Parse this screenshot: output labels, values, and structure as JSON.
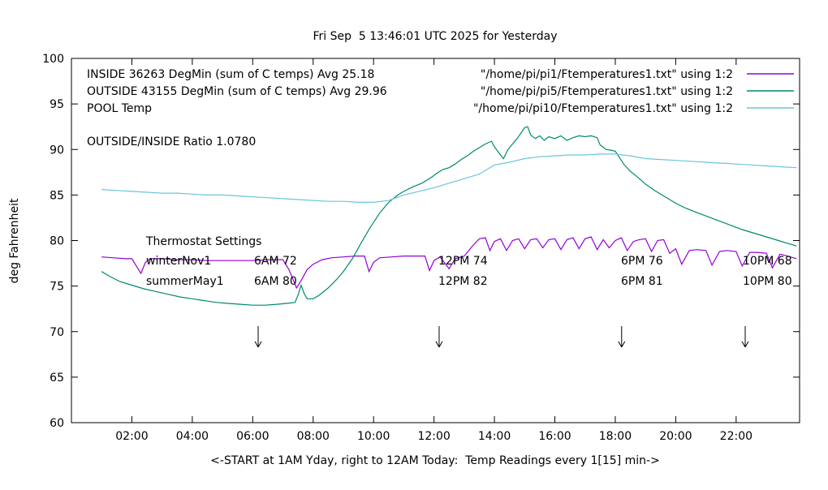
{
  "chart_data": {
    "type": "line",
    "title": "Fri Sep  5 13:46:01 UTC 2025 for Yesterday",
    "xlabel": "<-START at 1AM Yday, right to 12AM Today:  Temp Readings every 1[15] min->",
    "ylabel": "deg Fahrenheit",
    "xlim": [
      0,
      24.1
    ],
    "ylim": [
      60,
      100
    ],
    "grid": false,
    "legend_position": "top-left-inside",
    "xticks": [
      {
        "v": 2,
        "label": "02:00"
      },
      {
        "v": 4,
        "label": "04:00"
      },
      {
        "v": 6,
        "label": "06:00"
      },
      {
        "v": 8,
        "label": "08:00"
      },
      {
        "v": 10,
        "label": "10:00"
      },
      {
        "v": 12,
        "label": "12:00"
      },
      {
        "v": 14,
        "label": "14:00"
      },
      {
        "v": 16,
        "label": "16:00"
      },
      {
        "v": 18,
        "label": "18:00"
      },
      {
        "v": 20,
        "label": "20:00"
      },
      {
        "v": 22,
        "label": "22:00"
      }
    ],
    "yticks": [
      60,
      65,
      70,
      75,
      80,
      85,
      90,
      95,
      100
    ],
    "legend": [
      {
        "label": "INSIDE 36263 DegMin (sum of C temps) Avg 25.18",
        "file": "\"/home/pi/pi1/Ftemperatures1.txt\" using 1:2",
        "color": "#9400d3"
      },
      {
        "label": "OUTSIDE 43155 DegMin (sum of C temps) Avg 29.96",
        "file": "\"/home/pi/pi5/Ftemperatures1.txt\" using 1:2",
        "color": "#00896c"
      },
      {
        "label": "POOL Temp",
        "file": "\"/home/pi/pi10/Ftemperatures1.txt\" using 1:2",
        "color": "#6cc5d8"
      }
    ],
    "series": [
      {
        "name": "INSIDE",
        "color": "#9400d3",
        "points": [
          [
            1.0,
            78.2
          ],
          [
            1.4,
            78.1
          ],
          [
            1.8,
            78.0
          ],
          [
            2.0,
            78.0
          ],
          [
            2.15,
            77.2
          ],
          [
            2.3,
            76.4
          ],
          [
            2.45,
            77.6
          ],
          [
            2.6,
            78.0
          ],
          [
            3.0,
            78.0
          ],
          [
            3.5,
            77.9
          ],
          [
            4.0,
            77.9
          ],
          [
            4.5,
            77.8
          ],
          [
            5.0,
            77.8
          ],
          [
            5.5,
            77.8
          ],
          [
            6.0,
            77.8
          ],
          [
            6.5,
            77.9
          ],
          [
            7.0,
            77.9
          ],
          [
            7.2,
            76.8
          ],
          [
            7.45,
            74.8
          ],
          [
            7.6,
            75.6
          ],
          [
            7.8,
            76.8
          ],
          [
            8.0,
            77.4
          ],
          [
            8.3,
            77.9
          ],
          [
            8.6,
            78.1
          ],
          [
            9.0,
            78.2
          ],
          [
            9.4,
            78.3
          ],
          [
            9.7,
            78.3
          ],
          [
            9.85,
            76.6
          ],
          [
            10.0,
            77.6
          ],
          [
            10.2,
            78.1
          ],
          [
            10.6,
            78.2
          ],
          [
            11.0,
            78.3
          ],
          [
            11.4,
            78.3
          ],
          [
            11.7,
            78.3
          ],
          [
            11.85,
            76.7
          ],
          [
            12.0,
            77.8
          ],
          [
            12.2,
            78.2
          ],
          [
            12.5,
            76.9
          ],
          [
            12.7,
            78.0
          ],
          [
            13.0,
            78.3
          ],
          [
            13.3,
            79.5
          ],
          [
            13.5,
            80.2
          ],
          [
            13.7,
            80.3
          ],
          [
            13.85,
            78.9
          ],
          [
            14.0,
            79.9
          ],
          [
            14.2,
            80.2
          ],
          [
            14.4,
            78.9
          ],
          [
            14.6,
            80.0
          ],
          [
            14.8,
            80.2
          ],
          [
            15.0,
            79.1
          ],
          [
            15.2,
            80.1
          ],
          [
            15.4,
            80.2
          ],
          [
            15.6,
            79.2
          ],
          [
            15.8,
            80.1
          ],
          [
            16.0,
            80.2
          ],
          [
            16.2,
            79.0
          ],
          [
            16.4,
            80.1
          ],
          [
            16.6,
            80.3
          ],
          [
            16.8,
            79.1
          ],
          [
            17.0,
            80.2
          ],
          [
            17.2,
            80.4
          ],
          [
            17.4,
            79.0
          ],
          [
            17.6,
            80.1
          ],
          [
            17.8,
            79.2
          ],
          [
            18.0,
            80.0
          ],
          [
            18.2,
            80.3
          ],
          [
            18.4,
            78.9
          ],
          [
            18.6,
            79.9
          ],
          [
            18.8,
            80.1
          ],
          [
            19.0,
            80.2
          ],
          [
            19.2,
            78.8
          ],
          [
            19.4,
            80.0
          ],
          [
            19.6,
            80.1
          ],
          [
            19.8,
            78.6
          ],
          [
            20.0,
            79.1
          ],
          [
            20.2,
            77.4
          ],
          [
            20.45,
            78.9
          ],
          [
            20.7,
            79.0
          ],
          [
            21.0,
            78.9
          ],
          [
            21.2,
            77.3
          ],
          [
            21.45,
            78.8
          ],
          [
            21.7,
            78.9
          ],
          [
            22.0,
            78.8
          ],
          [
            22.2,
            77.2
          ],
          [
            22.45,
            78.7
          ],
          [
            22.7,
            78.7
          ],
          [
            23.0,
            78.6
          ],
          [
            23.2,
            77.0
          ],
          [
            23.45,
            78.5
          ],
          [
            23.7,
            78.3
          ],
          [
            24.0,
            78.0
          ]
        ]
      },
      {
        "name": "OUTSIDE",
        "color": "#00896c",
        "points": [
          [
            1.0,
            76.6
          ],
          [
            1.3,
            76.0
          ],
          [
            1.6,
            75.5
          ],
          [
            2.0,
            75.1
          ],
          [
            2.4,
            74.7
          ],
          [
            2.8,
            74.4
          ],
          [
            3.2,
            74.1
          ],
          [
            3.6,
            73.8
          ],
          [
            4.0,
            73.6
          ],
          [
            4.4,
            73.4
          ],
          [
            4.8,
            73.2
          ],
          [
            5.2,
            73.1
          ],
          [
            5.6,
            73.0
          ],
          [
            6.0,
            72.9
          ],
          [
            6.4,
            72.9
          ],
          [
            6.8,
            73.0
          ],
          [
            7.1,
            73.1
          ],
          [
            7.4,
            73.2
          ],
          [
            7.5,
            74.0
          ],
          [
            7.6,
            75.1
          ],
          [
            7.7,
            74.2
          ],
          [
            7.8,
            73.6
          ],
          [
            8.0,
            73.6
          ],
          [
            8.2,
            74.0
          ],
          [
            8.5,
            74.8
          ],
          [
            8.8,
            75.8
          ],
          [
            9.0,
            76.6
          ],
          [
            9.3,
            78.0
          ],
          [
            9.6,
            79.8
          ],
          [
            9.9,
            81.5
          ],
          [
            10.2,
            83.0
          ],
          [
            10.5,
            84.2
          ],
          [
            10.8,
            85.0
          ],
          [
            11.0,
            85.4
          ],
          [
            11.3,
            85.9
          ],
          [
            11.6,
            86.3
          ],
          [
            11.9,
            86.9
          ],
          [
            12.1,
            87.4
          ],
          [
            12.3,
            87.8
          ],
          [
            12.5,
            88.0
          ],
          [
            12.7,
            88.4
          ],
          [
            12.9,
            88.9
          ],
          [
            13.1,
            89.3
          ],
          [
            13.3,
            89.8
          ],
          [
            13.5,
            90.2
          ],
          [
            13.7,
            90.6
          ],
          [
            13.9,
            90.9
          ],
          [
            14.0,
            90.3
          ],
          [
            14.15,
            89.6
          ],
          [
            14.3,
            89.0
          ],
          [
            14.45,
            90.0
          ],
          [
            14.6,
            90.6
          ],
          [
            14.75,
            91.2
          ],
          [
            14.9,
            91.9
          ],
          [
            15.0,
            92.4
          ],
          [
            15.1,
            92.5
          ],
          [
            15.2,
            91.6
          ],
          [
            15.35,
            91.2
          ],
          [
            15.5,
            91.5
          ],
          [
            15.65,
            91.0
          ],
          [
            15.8,
            91.4
          ],
          [
            16.0,
            91.2
          ],
          [
            16.2,
            91.5
          ],
          [
            16.4,
            91.0
          ],
          [
            16.6,
            91.3
          ],
          [
            16.8,
            91.5
          ],
          [
            17.0,
            91.4
          ],
          [
            17.2,
            91.5
          ],
          [
            17.4,
            91.3
          ],
          [
            17.5,
            90.5
          ],
          [
            17.7,
            90.0
          ],
          [
            17.9,
            89.9
          ],
          [
            18.0,
            89.8
          ],
          [
            18.1,
            89.3
          ],
          [
            18.3,
            88.3
          ],
          [
            18.5,
            87.6
          ],
          [
            18.8,
            86.8
          ],
          [
            19.0,
            86.2
          ],
          [
            19.3,
            85.5
          ],
          [
            19.6,
            84.9
          ],
          [
            20.0,
            84.1
          ],
          [
            20.3,
            83.6
          ],
          [
            20.6,
            83.2
          ],
          [
            21.0,
            82.7
          ],
          [
            21.4,
            82.2
          ],
          [
            21.8,
            81.7
          ],
          [
            22.2,
            81.2
          ],
          [
            22.6,
            80.8
          ],
          [
            23.0,
            80.4
          ],
          [
            23.4,
            80.0
          ],
          [
            23.7,
            79.7
          ],
          [
            24.0,
            79.4
          ]
        ]
      },
      {
        "name": "POOL",
        "color": "#6cc5d8",
        "points": [
          [
            1.0,
            85.6
          ],
          [
            1.5,
            85.5
          ],
          [
            2.0,
            85.4
          ],
          [
            2.5,
            85.3
          ],
          [
            3.0,
            85.2
          ],
          [
            3.5,
            85.2
          ],
          [
            4.0,
            85.1
          ],
          [
            4.5,
            85.0
          ],
          [
            5.0,
            85.0
          ],
          [
            5.5,
            84.9
          ],
          [
            6.0,
            84.8
          ],
          [
            6.5,
            84.7
          ],
          [
            7.0,
            84.6
          ],
          [
            7.5,
            84.5
          ],
          [
            8.0,
            84.4
          ],
          [
            8.5,
            84.3
          ],
          [
            9.0,
            84.3
          ],
          [
            9.5,
            84.2
          ],
          [
            10.0,
            84.2
          ],
          [
            10.5,
            84.4
          ],
          [
            11.0,
            85.0
          ],
          [
            11.5,
            85.4
          ],
          [
            12.0,
            85.8
          ],
          [
            12.5,
            86.3
          ],
          [
            13.0,
            86.8
          ],
          [
            13.5,
            87.3
          ],
          [
            14.0,
            88.3
          ],
          [
            14.5,
            88.6
          ],
          [
            15.0,
            89.0
          ],
          [
            15.5,
            89.2
          ],
          [
            16.0,
            89.3
          ],
          [
            16.5,
            89.4
          ],
          [
            17.0,
            89.4
          ],
          [
            17.5,
            89.5
          ],
          [
            18.0,
            89.5
          ],
          [
            18.5,
            89.3
          ],
          [
            19.0,
            89.0
          ],
          [
            19.5,
            88.9
          ],
          [
            20.0,
            88.8
          ],
          [
            20.5,
            88.7
          ],
          [
            21.0,
            88.6
          ],
          [
            21.5,
            88.5
          ],
          [
            22.0,
            88.4
          ],
          [
            22.5,
            88.3
          ],
          [
            23.0,
            88.2
          ],
          [
            23.5,
            88.1
          ],
          [
            24.0,
            88.0
          ]
        ]
      }
    ],
    "annotations": {
      "ratio": "OUTSIDE/INSIDE Ratio 1.0780",
      "thermostat": {
        "title": "Thermostat Settings",
        "rows": [
          {
            "cells": [
              "winterNov1",
              "6AM 72",
              "12PM 74",
              "6PM 76",
              "10PM 68"
            ]
          },
          {
            "cells": [
              "summerMay1",
              "6AM 80",
              "12PM 82",
              "6PM 81",
              "10PM 80"
            ]
          }
        ]
      },
      "arrows": [
        {
          "x": 6.18,
          "y1": 70.6,
          "y2": 68.3
        },
        {
          "x": 12.17,
          "y1": 70.6,
          "y2": 68.3
        },
        {
          "x": 18.21,
          "y1": 70.6,
          "y2": 68.3
        },
        {
          "x": 22.3,
          "y1": 70.6,
          "y2": 68.3
        }
      ]
    }
  }
}
